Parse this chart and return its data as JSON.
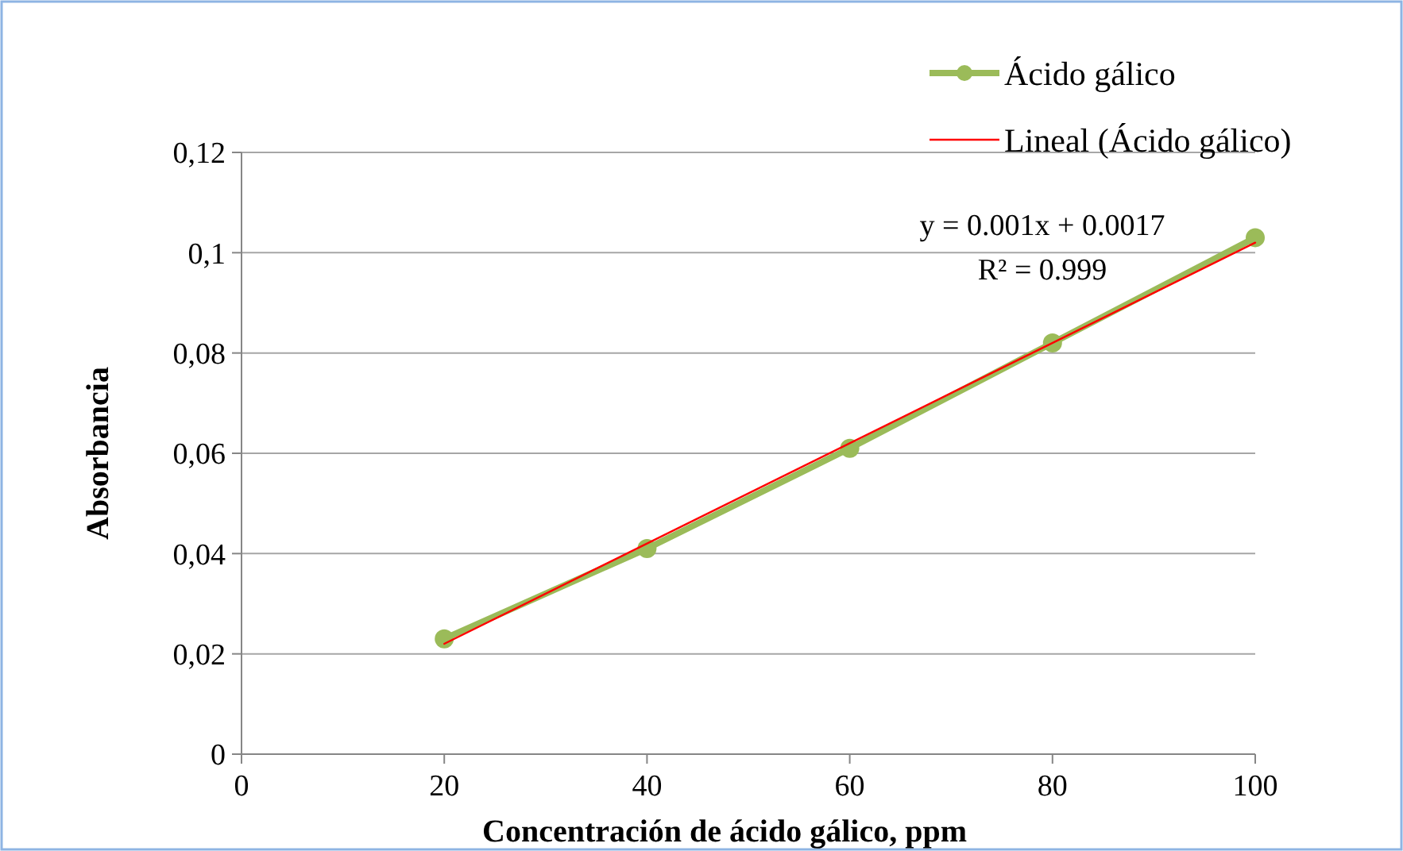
{
  "chart_data": {
    "type": "line",
    "xlabel": "Concentración de ácido gálico, ppm",
    "ylabel": "Absorbancia",
    "x": [
      20,
      40,
      60,
      80,
      100
    ],
    "series": [
      {
        "name": "Ácido gálico",
        "color": "#9bbb59",
        "values": [
          0.023,
          0.041,
          0.061,
          0.082,
          0.103
        ],
        "marker": "circle"
      },
      {
        "name": "Lineal (Ácido gálico)",
        "type": "line",
        "color": "#ff0000",
        "x": [
          20,
          100
        ],
        "values": [
          0.022,
          0.102
        ],
        "marker": "none"
      }
    ],
    "xlim": [
      0,
      100
    ],
    "xticks": [
      0,
      20,
      40,
      60,
      80,
      100
    ],
    "ylim": [
      0,
      0.12
    ],
    "yticks": [
      {
        "value": 0,
        "label": "0"
      },
      {
        "value": 0.02,
        "label": "0,02"
      },
      {
        "value": 0.04,
        "label": "0,04"
      },
      {
        "value": 0.06,
        "label": "0,06"
      },
      {
        "value": 0.08,
        "label": "0,08"
      },
      {
        "value": 0.1,
        "label": "0,1"
      },
      {
        "value": 0.12,
        "label": "0,12"
      }
    ],
    "grid": "y",
    "legend": "top right",
    "annotations": [
      "y = 0.001x + 0.0017",
      "R² = 0.999"
    ]
  }
}
